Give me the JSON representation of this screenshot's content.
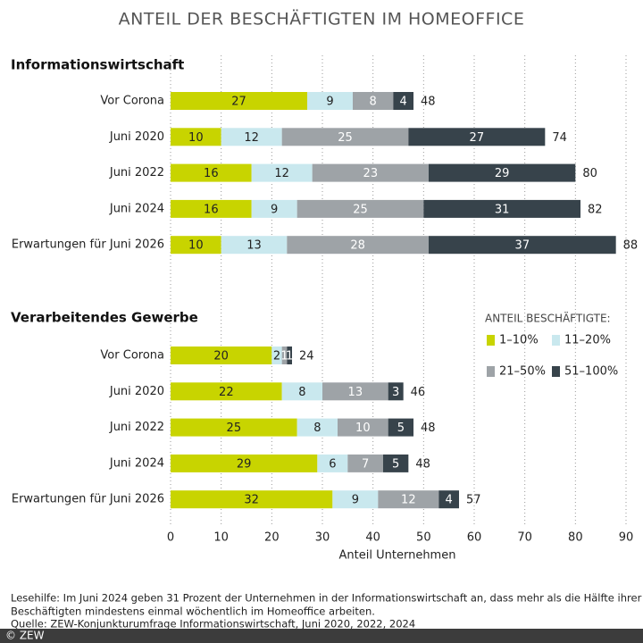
{
  "chart_data": {
    "type": "bar",
    "orientation": "horizontal",
    "stacked": true,
    "title": "ANTEIL DER BESCHÄFTIGTEN IM HOMEOFFICE",
    "x_label": "Anteil Unternehmen",
    "xlim": [
      0,
      90
    ],
    "xticks": [
      0,
      10,
      20,
      30,
      40,
      50,
      60,
      70,
      80,
      90
    ],
    "grid": true,
    "legend_title": "ANTEIL BESCHÄFTIGTE:",
    "series": [
      {
        "name": "1–10%",
        "color": "#c8d400"
      },
      {
        "name": "11–20%",
        "color": "#c9e8ee"
      },
      {
        "name": "21–50%",
        "color": "#9ea3a7"
      },
      {
        "name": "51–100%",
        "color": "#37434b"
      }
    ],
    "groups": [
      {
        "title": "Informationswirtschaft",
        "categories": [
          "Vor Corona",
          "Juni 2020",
          "Juni 2022",
          "Juni 2024",
          "Erwartungen für Juni 2026"
        ],
        "values": [
          [
            27,
            10,
            16,
            16,
            10
          ],
          [
            9,
            12,
            12,
            9,
            13
          ],
          [
            8,
            25,
            23,
            25,
            28
          ],
          [
            4,
            27,
            29,
            31,
            37
          ]
        ],
        "totals": [
          48,
          74,
          80,
          82,
          88
        ]
      },
      {
        "title": "Verarbeitendes Gewerbe",
        "categories": [
          "Vor Corona",
          "Juni 2020",
          "Juni 2022",
          "Juni 2024",
          "Erwartungen für Juni 2026"
        ],
        "values": [
          [
            20,
            22,
            25,
            29,
            32
          ],
          [
            2,
            8,
            8,
            6,
            9
          ],
          [
            1,
            13,
            10,
            7,
            12
          ],
          [
            1,
            3,
            5,
            5,
            4
          ]
        ],
        "totals": [
          24,
          46,
          48,
          48,
          57
        ]
      }
    ],
    "reading_aid": [
      "Lesehilfe: Im Juni 2024 geben 31 Prozent der Unternehmen in der Informationswirtschaft an, dass mehr als die Hälfte ihrer",
      "Beschäftigten mindestens einmal wöchentlich im Homeoffice arbeiten."
    ],
    "source": "Quelle: ZEW-Konjunkturumfrage Informationswirtschaft, Juni 2020, 2022, 2024",
    "copyright": "© ZEW"
  }
}
